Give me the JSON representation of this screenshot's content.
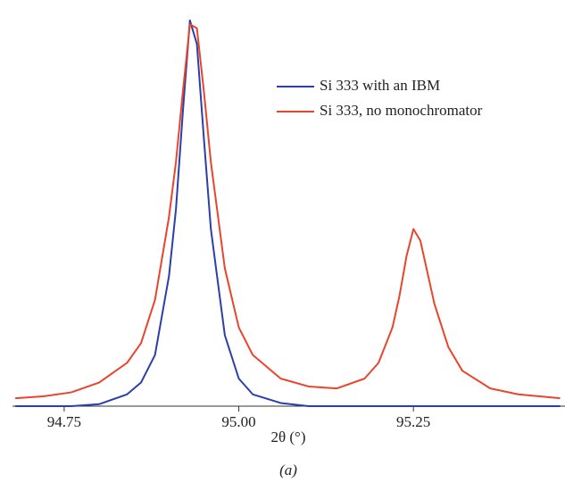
{
  "chart_data": {
    "type": "line",
    "x_label": "2θ (°)",
    "caption": "(a)",
    "x": [
      94.68,
      94.72,
      94.76,
      94.8,
      94.84,
      94.86,
      94.88,
      94.9,
      94.91,
      94.92,
      94.93,
      94.94,
      94.95,
      94.96,
      94.98,
      95.0,
      95.02,
      95.06,
      95.1,
      95.14,
      95.18,
      95.2,
      95.22,
      95.23,
      95.24,
      95.25,
      95.26,
      95.27,
      95.28,
      95.3,
      95.32,
      95.36,
      95.4,
      95.46
    ],
    "series": [
      {
        "name": "Si 333 with an IBM",
        "color": "#2b3fa8",
        "values": [
          0,
          0,
          0,
          0.005,
          0.03,
          0.06,
          0.13,
          0.33,
          0.5,
          0.75,
          0.98,
          0.92,
          0.68,
          0.45,
          0.18,
          0.07,
          0.03,
          0.008,
          0,
          0,
          0,
          0,
          0,
          0,
          0,
          0,
          0,
          0,
          0,
          0,
          0,
          0,
          0,
          0
        ]
      },
      {
        "name": "Si 333, no monochromator",
        "color": "#e8452c",
        "values": [
          0.02,
          0.025,
          0.035,
          0.06,
          0.11,
          0.16,
          0.27,
          0.48,
          0.62,
          0.8,
          0.97,
          0.96,
          0.8,
          0.62,
          0.35,
          0.2,
          0.13,
          0.07,
          0.05,
          0.045,
          0.07,
          0.11,
          0.2,
          0.28,
          0.38,
          0.45,
          0.42,
          0.34,
          0.26,
          0.15,
          0.09,
          0.045,
          0.03,
          0.02
        ]
      }
    ],
    "xlim": [
      94.676,
      95.467
    ],
    "ylim": [
      0,
      1
    ],
    "xticks": [
      {
        "value": 94.75,
        "label": "94.75"
      },
      {
        "value": 95.0,
        "label": "95.00"
      },
      {
        "value": 95.25,
        "label": "95.25"
      }
    ],
    "legend": "upper right"
  }
}
